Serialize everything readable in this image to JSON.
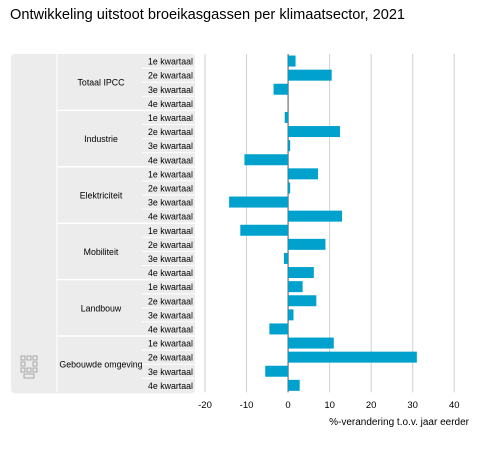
{
  "chart_data": {
    "type": "bar",
    "orientation": "horizontal",
    "title": "Ontwikkeling uitstoot broeikasgassen per klimaatsector, 2021",
    "xlabel": "%-verandering t.o.v. jaar eerder",
    "xlim": [
      -20,
      45
    ],
    "xticks": [
      -20,
      -10,
      0,
      10,
      20,
      30,
      40
    ],
    "grid": "vertical",
    "bar_color": "#00a1cd",
    "groups": [
      {
        "name": "Totaal IPCC",
        "categories": [
          "1e kwartaal",
          "2e kwartaal",
          "3e kwartaal",
          "4e kwartaal"
        ],
        "values": [
          1.8,
          10.5,
          -3.5,
          0
        ]
      },
      {
        "name": "Industrie",
        "categories": [
          "1e kwartaal",
          "2e kwartaal",
          "3e kwartaal",
          "4e kwartaal"
        ],
        "values": [
          -0.8,
          12.5,
          0.5,
          -10.5
        ]
      },
      {
        "name": "Elektriciteit",
        "categories": [
          "1e kwartaal",
          "2e kwartaal",
          "3e kwartaal",
          "4e kwartaal"
        ],
        "values": [
          7.2,
          0.5,
          -14.2,
          13
        ]
      },
      {
        "name": "Mobiliteit",
        "categories": [
          "1e kwartaal",
          "2e kwartaal",
          "3e kwartaal",
          "4e kwartaal"
        ],
        "values": [
          -11.5,
          9,
          -1,
          6.2
        ]
      },
      {
        "name": "Landbouw",
        "categories": [
          "1e kwartaal",
          "2e kwartaal",
          "3e kwartaal",
          "4e kwartaal"
        ],
        "values": [
          3.5,
          6.8,
          1.3,
          -4.5
        ]
      },
      {
        "name": "Gebouwde omgeving",
        "categories": [
          "1e kwartaal",
          "2e kwartaal",
          "3e kwartaal",
          "4e kwartaal"
        ],
        "values": [
          11,
          31,
          -5.5,
          2.8
        ]
      }
    ]
  }
}
